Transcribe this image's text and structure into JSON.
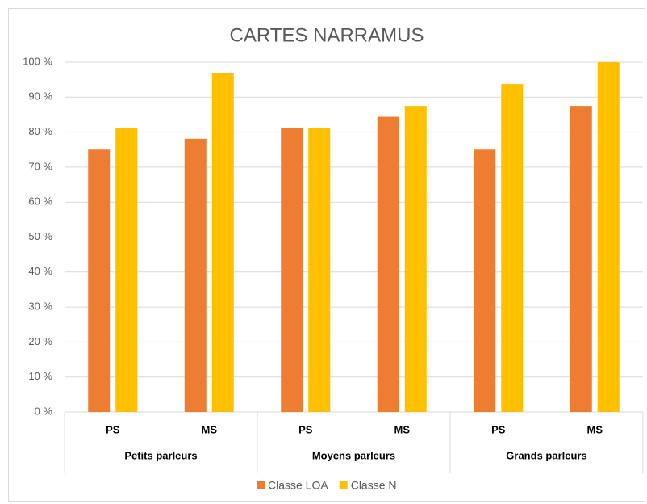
{
  "chart_data": {
    "type": "bar",
    "title": "CARTES NARRAMUS",
    "categories": [
      "PS",
      "MS",
      "PS",
      "MS",
      "PS",
      "MS"
    ],
    "groups": [
      "Petits parleurs",
      "Moyens parleurs",
      "Grands parleurs"
    ],
    "series": [
      {
        "name": "Classe LOA",
        "color": "#ed7d31",
        "values": [
          75,
          78.1,
          81.25,
          84.4,
          75,
          87.5
        ]
      },
      {
        "name": "Classe N",
        "color": "#ffc000",
        "values": [
          81.25,
          96.9,
          81.25,
          87.5,
          93.75,
          100
        ]
      }
    ],
    "ylim": [
      0,
      100
    ],
    "yticks": [
      {
        "value": 0,
        "label": "0 %"
      },
      {
        "value": 10,
        "label": "10 %"
      },
      {
        "value": 20,
        "label": "20 %"
      },
      {
        "value": 30,
        "label": "30 %"
      },
      {
        "value": 40,
        "label": "40 %"
      },
      {
        "value": 50,
        "label": "50 %"
      },
      {
        "value": 60,
        "label": "60 %"
      },
      {
        "value": 70,
        "label": "70 %"
      },
      {
        "value": 80,
        "label": "80 %"
      },
      {
        "value": 90,
        "label": "90 %"
      },
      {
        "value": 100,
        "label": "100 %"
      }
    ],
    "grid": true,
    "legend": "bottom"
  }
}
